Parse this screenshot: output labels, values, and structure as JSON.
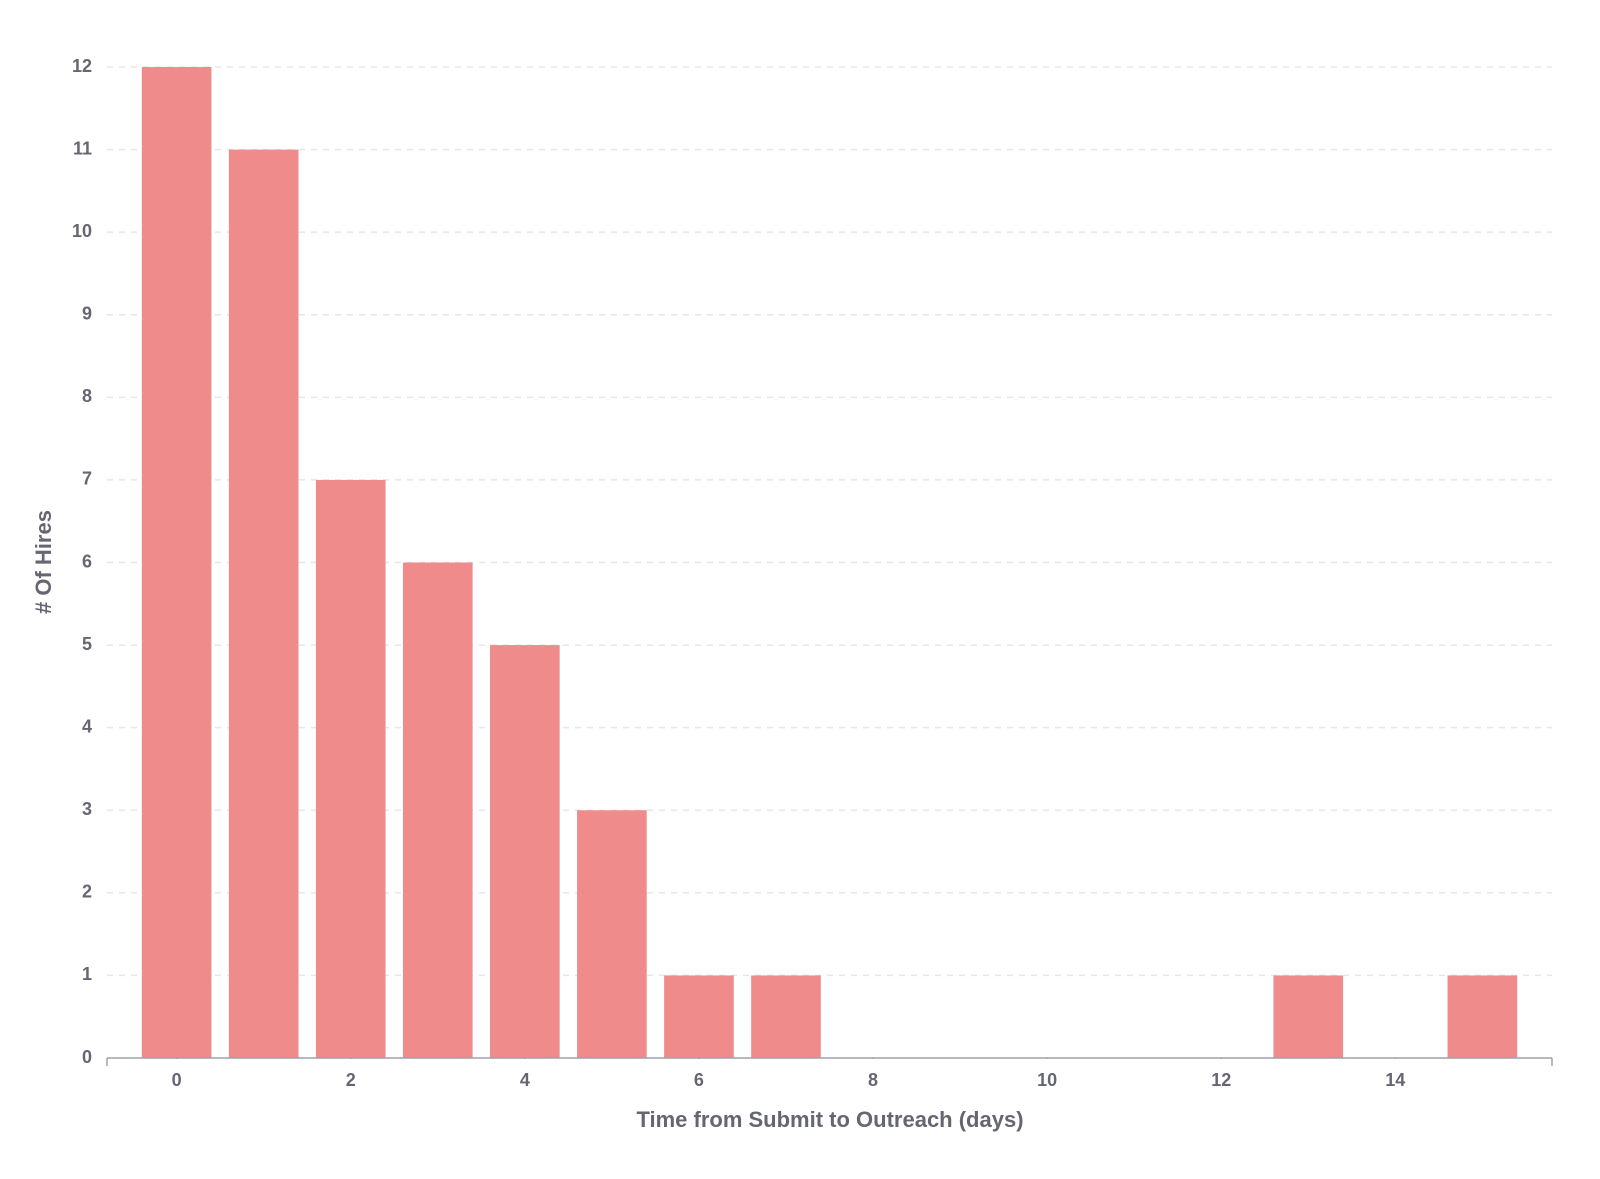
{
  "chart_data": {
    "type": "bar",
    "x_label": "Time from Submit to Outreach (days)",
    "y_label": "# Of Hires",
    "x": [
      0,
      1,
      2,
      3,
      4,
      5,
      6,
      7,
      13,
      15
    ],
    "values": [
      12,
      11,
      7,
      6,
      5,
      3,
      1,
      1,
      1,
      1
    ],
    "color": "#ef8b8b",
    "xlim": [
      -0.8,
      15.8
    ],
    "xticks": [
      0,
      2,
      4,
      6,
      8,
      10,
      12,
      14
    ],
    "ylim": [
      0,
      12
    ],
    "yticks": [
      0,
      1,
      2,
      3,
      4,
      5,
      6,
      7,
      8,
      9,
      10,
      11,
      12
    ],
    "grid": true
  }
}
